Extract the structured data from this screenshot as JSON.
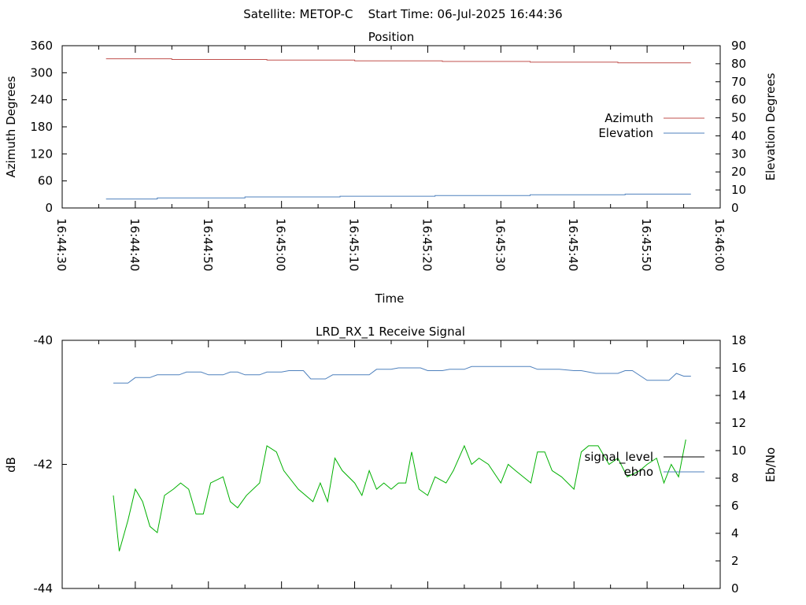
{
  "page_title": "Satellite: METOP-C    Start Time: 06-Jul-2025 16:44:36",
  "chart_data": [
    {
      "type": "line",
      "title": "Position",
      "xlabel": "Time",
      "ylabel": "Azimuth Degrees",
      "y2label": "Elevation Degrees",
      "xlim": [
        0,
        90
      ],
      "ylim": [
        0,
        360
      ],
      "y2lim": [
        0,
        90
      ],
      "x_ticks": [
        {
          "x": 0,
          "label": "16:44:30"
        },
        {
          "x": 10,
          "label": "16:44:40"
        },
        {
          "x": 20,
          "label": "16:44:50"
        },
        {
          "x": 30,
          "label": "16:45:00"
        },
        {
          "x": 40,
          "label": "16:45:10"
        },
        {
          "x": 50,
          "label": "16:45:20"
        },
        {
          "x": 60,
          "label": "16:45:30"
        },
        {
          "x": 70,
          "label": "16:45:40"
        },
        {
          "x": 80,
          "label": "16:45:50"
        },
        {
          "x": 90,
          "label": "16:46:00"
        }
      ],
      "y_ticks": [
        0,
        60,
        120,
        180,
        240,
        300,
        360
      ],
      "y2_ticks": [
        0,
        10,
        20,
        30,
        40,
        50,
        60,
        70,
        80,
        90
      ],
      "legend_position": "right",
      "series": [
        {
          "name": "Azimuth",
          "axis": "y",
          "color": "#c0504d",
          "x": [
            6,
            15,
            15,
            28,
            28,
            40,
            40,
            52,
            52,
            64,
            64,
            76,
            76,
            86
          ],
          "y": [
            331,
            331,
            329.5,
            329.5,
            328,
            328,
            326.5,
            326.5,
            325,
            325,
            323.5,
            323.5,
            322,
            322
          ]
        },
        {
          "name": "Elevation",
          "axis": "y2",
          "color": "#4f81bd",
          "x": [
            6,
            13,
            13,
            25,
            25,
            38,
            38,
            51,
            51,
            64,
            64,
            77,
            77,
            86
          ],
          "y": [
            5,
            5,
            5.6,
            5.6,
            6.1,
            6.1,
            6.5,
            6.5,
            6.9,
            6.9,
            7.3,
            7.3,
            7.7,
            7.7
          ]
        }
      ]
    },
    {
      "type": "line",
      "title": "LRD_RX_1 Receive Signal",
      "xlabel": "",
      "ylabel": "dB",
      "y2label": "Eb/No",
      "xlim": [
        0,
        90
      ],
      "ylim": [
        -44,
        -40
      ],
      "y2lim": [
        0,
        18
      ],
      "y_ticks": [
        -44,
        -42,
        -40
      ],
      "y2_ticks": [
        0,
        2,
        4,
        6,
        8,
        10,
        12,
        14,
        16,
        18
      ],
      "legend_position": "right",
      "series": [
        {
          "name": "signal_level",
          "axis": "y",
          "color": "#00b000",
          "x": [
            7,
            7.8,
            9,
            10,
            11,
            12,
            13,
            14,
            15.2,
            16.2,
            17.3,
            18.3,
            19.3,
            20.3,
            22,
            23,
            24,
            25.2,
            27,
            28,
            29.3,
            30.3,
            32.3,
            34.3,
            35.3,
            36.3,
            37.3,
            38.3,
            40,
            41,
            42,
            43,
            44,
            45,
            46,
            47,
            47.8,
            48.8,
            50,
            51,
            52.5,
            53.5,
            55,
            56,
            57,
            58.3,
            60,
            61,
            62,
            64.1,
            65,
            66,
            67,
            68.3,
            70,
            71,
            72,
            73.3,
            74.8,
            76,
            77.3,
            79,
            80,
            81.3,
            82.3,
            83.3,
            84.3,
            85.3
          ],
          "y": [
            -42.5,
            -43.4,
            -42.9,
            -42.4,
            -42.6,
            -43,
            -43.1,
            -42.5,
            -42.4,
            -42.3,
            -42.4,
            -42.8,
            -42.8,
            -42.3,
            -42.2,
            -42.6,
            -42.7,
            -42.5,
            -42.3,
            -41.7,
            -41.8,
            -42.1,
            -42.4,
            -42.6,
            -42.3,
            -42.6,
            -41.9,
            -42.1,
            -42.3,
            -42.5,
            -42.1,
            -42.4,
            -42.3,
            -42.4,
            -42.3,
            -42.3,
            -41.8,
            -42.4,
            -42.5,
            -42.2,
            -42.3,
            -42.1,
            -41.7,
            -42,
            -41.9,
            -42,
            -42.3,
            -42,
            -42.1,
            -42.3,
            -41.8,
            -41.8,
            -42.1,
            -42.2,
            -42.4,
            -41.8,
            -41.7,
            -41.7,
            -42,
            -41.9,
            -42.2,
            -42.1,
            -42,
            -41.9,
            -42.3,
            -42,
            -42.2,
            -41.6
          ],
          "note_drawn_color": "green"
        },
        {
          "name": "ebno",
          "axis": "y2",
          "color": "#4f81bd",
          "x": [
            7,
            9,
            10,
            12,
            13,
            16,
            17,
            19,
            20,
            22,
            23,
            24,
            25,
            27,
            28,
            30,
            31,
            33,
            34,
            36,
            37,
            39,
            40,
            42,
            43,
            45,
            46,
            48,
            49,
            50,
            52,
            53,
            55,
            56,
            58,
            59,
            61,
            62,
            64,
            65,
            67,
            68,
            70,
            71,
            73,
            74,
            76,
            77,
            78,
            80,
            81,
            82,
            83,
            84,
            85,
            86
          ],
          "y": [
            14.9,
            14.9,
            15.3,
            15.3,
            15.5,
            15.5,
            15.7,
            15.7,
            15.5,
            15.5,
            15.7,
            15.7,
            15.5,
            15.5,
            15.7,
            15.7,
            15.8,
            15.8,
            15.2,
            15.2,
            15.5,
            15.5,
            15.5,
            15.5,
            15.9,
            15.9,
            16.0,
            16.0,
            16.0,
            15.8,
            15.8,
            15.9,
            15.9,
            16.1,
            16.1,
            16.1,
            16.1,
            16.1,
            16.1,
            15.9,
            15.9,
            15.9,
            15.8,
            15.8,
            15.6,
            15.6,
            15.6,
            15.8,
            15.8,
            15.1,
            15.1,
            15.1,
            15.1,
            15.6,
            15.4,
            15.4
          ]
        }
      ]
    }
  ]
}
